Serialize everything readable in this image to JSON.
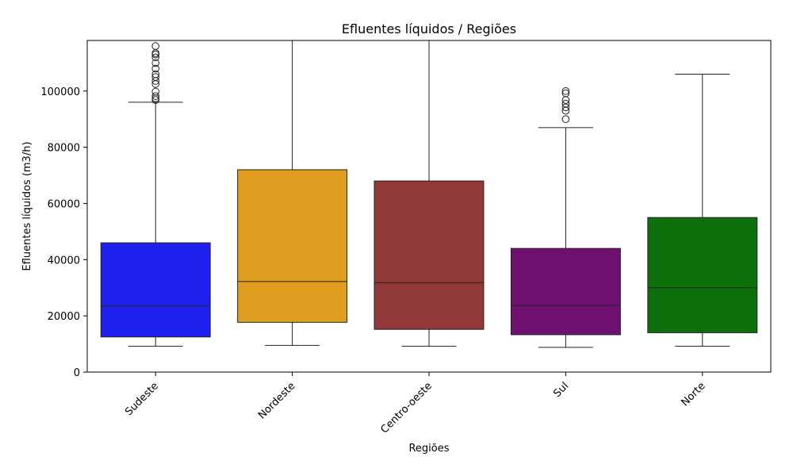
{
  "chart_data": {
    "type": "box",
    "title": "Efluentes líquidos / Regiões",
    "xlabel": "Regiões",
    "ylabel": "Efluentes líquidos (m3/h)",
    "ylim": [
      0,
      118000
    ],
    "yticks": [
      0,
      20000,
      40000,
      60000,
      80000,
      100000
    ],
    "grid": false,
    "categories": [
      "Sudeste",
      "Nordeste",
      "Centro-oeste",
      "Sul",
      "Norte"
    ],
    "boxes": [
      {
        "category": "Sudeste",
        "color": "#1f1fee",
        "whisker_low": 9200,
        "q1": 12500,
        "median": 23500,
        "q3": 46000,
        "whisker_high": 96000,
        "outliers": [
          96800,
          97400,
          98200,
          99800,
          102500,
          103600,
          105000,
          106000,
          108000,
          110000,
          112000,
          113000,
          113500,
          116000
        ]
      },
      {
        "category": "Nordeste",
        "color": "#e09e20",
        "whisker_low": 9500,
        "q1": 17700,
        "median": 32200,
        "q3": 72000,
        "whisker_high": 118000,
        "outliers": []
      },
      {
        "category": "Centro-oeste",
        "color": "#923939",
        "whisker_low": 9200,
        "q1": 15200,
        "median": 31800,
        "q3": 68000,
        "whisker_high": 118000,
        "outliers": []
      },
      {
        "category": "Sul",
        "color": "#701070",
        "whisker_low": 8800,
        "q1": 13300,
        "median": 23700,
        "q3": 44000,
        "whisker_high": 87000,
        "outliers": [
          90000,
          93000,
          94200,
          95500,
          96800,
          99200,
          100000
        ]
      },
      {
        "category": "Norte",
        "color": "#0d700d",
        "whisker_low": 9200,
        "q1": 14000,
        "median": 30000,
        "q3": 55000,
        "whisker_high": 106000,
        "outliers": []
      }
    ]
  }
}
